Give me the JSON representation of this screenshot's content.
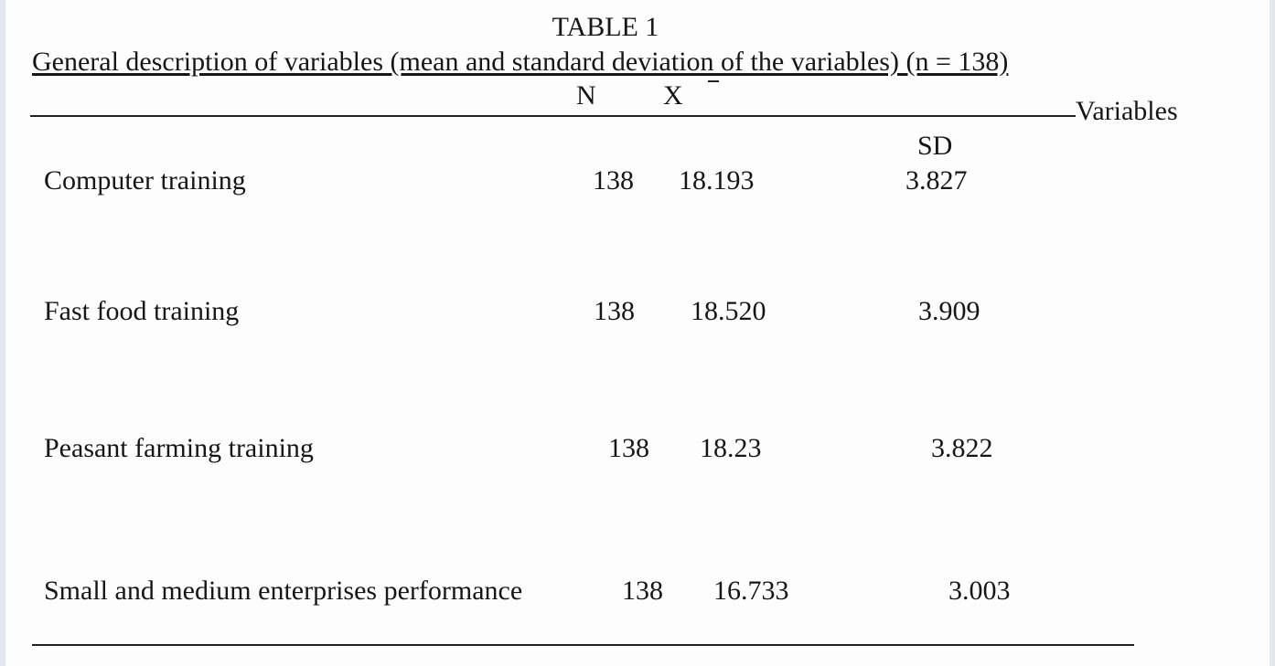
{
  "table": {
    "title": "TABLE 1",
    "caption": "General description of variables (mean and standard deviation of the variables) (n = 138)",
    "headers": {
      "variables": "Variables",
      "n": "N",
      "mean": "X",
      "sd": "SD"
    },
    "rows": [
      [
        "Computer training",
        "138",
        "18.193",
        "3.827"
      ],
      [
        "Fast food training",
        "138",
        "18.520",
        "3.909"
      ],
      [
        "Peasant farming training",
        "138",
        "18.23",
        "3.822"
      ],
      [
        "Small and medium enterprises performance",
        "138",
        "16.733",
        "3.003"
      ]
    ]
  }
}
